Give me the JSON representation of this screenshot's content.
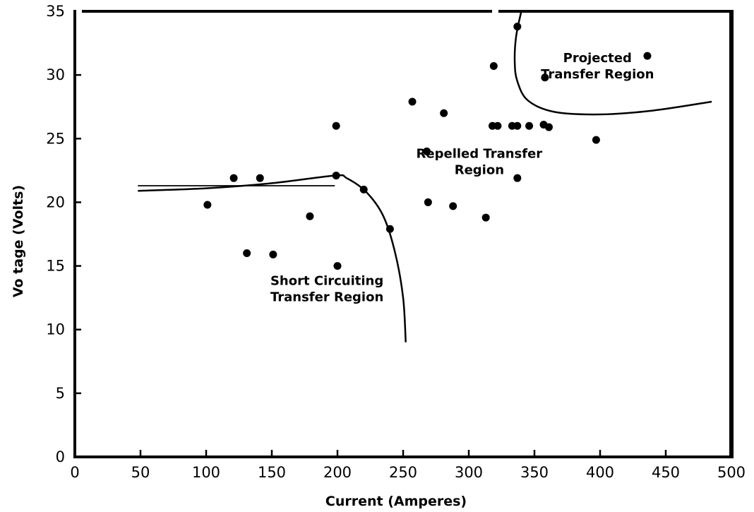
{
  "chart_data": {
    "type": "scatter",
    "title": "",
    "xlabel": "Current (Amperes)",
    "ylabel": "Vo tage (Volts)",
    "xlim": [
      0,
      500
    ],
    "ylim": [
      0,
      35
    ],
    "grid": false,
    "x_ticks": [
      {
        "value": 0,
        "label": "0"
      },
      {
        "value": 50,
        "label": "50"
      },
      {
        "value": 100,
        "label": "100"
      },
      {
        "value": 150,
        "label": "150"
      },
      {
        "value": 200,
        "label": "200"
      },
      {
        "value": 250,
        "label": "250"
      },
      {
        "value": 300,
        "label": "300"
      },
      {
        "value": 350,
        "label": "350"
      },
      {
        "value": 400,
        "label": "400"
      },
      {
        "value": 450,
        "label": "450"
      },
      {
        "value": 500,
        "label": "500"
      }
    ],
    "y_ticks": [
      {
        "value": 0,
        "label": "0"
      },
      {
        "value": 5,
        "label": "5"
      },
      {
        "value": 10,
        "label": "10"
      },
      {
        "value": 15,
        "label": "15"
      },
      {
        "value": 20,
        "label": "20"
      },
      {
        "value": 25,
        "label": "25"
      },
      {
        "value": 30,
        "label": "30"
      },
      {
        "value": 35,
        "label": "35"
      }
    ],
    "points": [
      {
        "x": 101,
        "y": 19.8
      },
      {
        "x": 121,
        "y": 21.9
      },
      {
        "x": 131,
        "y": 16.0
      },
      {
        "x": 141,
        "y": 21.9
      },
      {
        "x": 151,
        "y": 15.9
      },
      {
        "x": 179,
        "y": 18.9
      },
      {
        "x": 199,
        "y": 26.0
      },
      {
        "x": 199,
        "y": 22.1
      },
      {
        "x": 200,
        "y": 15.0
      },
      {
        "x": 220,
        "y": 21.0
      },
      {
        "x": 240,
        "y": 17.9
      },
      {
        "x": 257,
        "y": 27.9
      },
      {
        "x": 268,
        "y": 24.0
      },
      {
        "x": 269,
        "y": 20.0
      },
      {
        "x": 281,
        "y": 27.0
      },
      {
        "x": 288,
        "y": 19.7
      },
      {
        "x": 313,
        "y": 18.8
      },
      {
        "x": 318,
        "y": 26.0
      },
      {
        "x": 319,
        "y": 30.7
      },
      {
        "x": 322,
        "y": 26.0
      },
      {
        "x": 333,
        "y": 26.0
      },
      {
        "x": 337,
        "y": 26.0
      },
      {
        "x": 337,
        "y": 33.8
      },
      {
        "x": 337,
        "y": 21.9
      },
      {
        "x": 346,
        "y": 26.0
      },
      {
        "x": 357,
        "y": 26.1
      },
      {
        "x": 358,
        "y": 29.8
      },
      {
        "x": 361,
        "y": 25.9
      },
      {
        "x": 397,
        "y": 24.9
      },
      {
        "x": 436,
        "y": 31.5
      }
    ],
    "boundary_curves": [
      [
        [
          48,
          20.9
        ],
        [
          100,
          21.1
        ],
        [
          150,
          21.5
        ],
        [
          198,
          22.1
        ],
        [
          207,
          21.9
        ],
        [
          222,
          20.8
        ],
        [
          235,
          18.9
        ],
        [
          244,
          16.0
        ],
        [
          250,
          12.5
        ],
        [
          252,
          9.0
        ]
      ],
      [
        [
          48,
          21.3
        ],
        [
          198,
          21.3
        ]
      ],
      [
        [
          340,
          35.0
        ],
        [
          336,
          33.0
        ],
        [
          335,
          31.0
        ],
        [
          337,
          29.5
        ],
        [
          345,
          28.0
        ],
        [
          365,
          27.1
        ],
        [
          400,
          26.9
        ],
        [
          440,
          27.2
        ],
        [
          485,
          27.9
        ]
      ]
    ],
    "annotations": [
      {
        "x": 192,
        "y": 13.5,
        "lines": [
          "Short Circuiting",
          "Transfer Region"
        ]
      },
      {
        "x": 308,
        "y": 23.5,
        "lines": [
          "Repelled Transfer",
          "Region"
        ]
      },
      {
        "x": 398,
        "y": 31.0,
        "lines": [
          "Projected",
          "Transfer Region"
        ]
      }
    ]
  }
}
